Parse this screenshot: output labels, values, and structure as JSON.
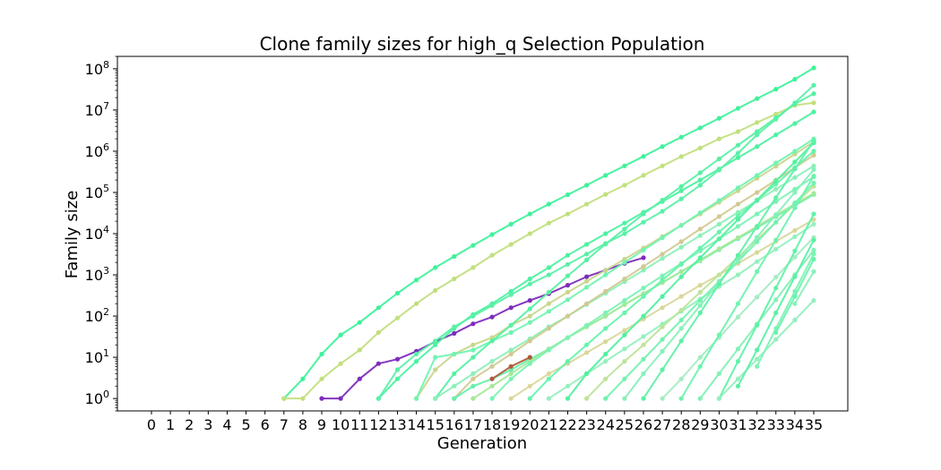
{
  "chart_data": {
    "type": "line",
    "title": "Clone family sizes for high_q Selection Population",
    "xlabel": "Generation",
    "ylabel": "Family size",
    "yscale": "log",
    "ylim": [
      0.5,
      200000000
    ],
    "xlim": [
      -1.8,
      36.8
    ],
    "x_ticks": [
      0,
      1,
      2,
      3,
      4,
      5,
      6,
      7,
      8,
      9,
      10,
      11,
      12,
      13,
      14,
      15,
      16,
      17,
      18,
      19,
      20,
      21,
      22,
      23,
      24,
      25,
      26,
      27,
      28,
      29,
      30,
      31,
      32,
      33,
      34,
      35
    ],
    "y_ticks": [
      {
        "value": 1,
        "base": "10",
        "exp": "0"
      },
      {
        "value": 10,
        "base": "10",
        "exp": "1"
      },
      {
        "value": 100,
        "base": "10",
        "exp": "2"
      },
      {
        "value": 1000,
        "base": "10",
        "exp": "3"
      },
      {
        "value": 10000,
        "base": "10",
        "exp": "4"
      },
      {
        "value": 100000,
        "base": "10",
        "exp": "5"
      },
      {
        "value": 1000000,
        "base": "10",
        "exp": "6"
      },
      {
        "value": 10000000,
        "base": "10",
        "exp": "7"
      },
      {
        "value": 100000000,
        "base": "10",
        "exp": "8"
      }
    ],
    "grid": false,
    "legend": "none",
    "markers": true,
    "series": [
      {
        "color": "#3ff29a",
        "x": [
          7,
          8,
          9,
          10,
          11,
          12,
          13,
          14,
          15,
          16,
          17,
          18,
          19,
          20,
          21,
          22,
          23,
          24,
          25,
          26,
          27,
          28,
          29,
          30,
          31,
          32,
          33,
          34,
          35
        ],
        "y": [
          1,
          3,
          12,
          35,
          70,
          160,
          360,
          750,
          1500,
          2800,
          5200,
          9500,
          17000,
          30000,
          52000,
          88000,
          150000,
          260000,
          440000,
          750000,
          1300000,
          2200000,
          3700000,
          6300000,
          11000000,
          19000000,
          32000000,
          56000000,
          105000000
        ]
      },
      {
        "color": "#c2df7e",
        "x": [
          7,
          8,
          9,
          10,
          11,
          12,
          13,
          14,
          15,
          16,
          17,
          18,
          19,
          20,
          21,
          22,
          23,
          24,
          25,
          26,
          27,
          28,
          29,
          30,
          31,
          32,
          33,
          34,
          35
        ],
        "y": [
          1,
          1,
          3,
          7,
          15,
          40,
          90,
          200,
          420,
          800,
          1500,
          3000,
          5500,
          10000,
          18000,
          30000,
          52000,
          90000,
          150000,
          260000,
          440000,
          740000,
          1200000,
          2000000,
          3000000,
          5000000,
          8000000,
          13000000,
          15000000
        ]
      },
      {
        "color": "#7d2cbc",
        "x": [
          9,
          10,
          11,
          12,
          13,
          14,
          15,
          16,
          17,
          18,
          19,
          20,
          21,
          22,
          23,
          24,
          25,
          26
        ],
        "y": [
          1,
          1,
          3,
          7,
          9,
          14,
          24,
          38,
          65,
          95,
          160,
          240,
          350,
          560,
          900,
          1300,
          1900,
          2600
        ]
      },
      {
        "color": "#4cf2a0",
        "x": [
          12,
          13,
          14,
          15,
          16,
          17,
          18,
          19,
          20,
          21,
          22,
          23,
          24,
          25,
          26,
          27,
          28,
          29,
          30,
          31,
          32,
          33,
          34,
          35
        ],
        "y": [
          1,
          3,
          8,
          20,
          50,
          110,
          200,
          400,
          800,
          1500,
          3000,
          5500,
          10000,
          18000,
          33000,
          60000,
          110000,
          200000,
          370000,
          700000,
          1300000,
          2500000,
          4700000,
          9000000
        ]
      },
      {
        "color": "#5af0a8",
        "x": [
          12,
          13,
          14,
          15,
          16,
          17,
          18,
          19,
          20,
          21,
          22,
          23,
          24,
          25,
          26,
          27,
          28,
          29,
          30,
          31,
          32,
          33,
          34,
          35
        ],
        "y": [
          1,
          5,
          12,
          25,
          55,
          100,
          180,
          330,
          600,
          1000,
          1800,
          3200,
          5800,
          10000,
          19000,
          35000,
          70000,
          150000,
          350000,
          900000,
          2500000,
          6000000,
          15000000,
          40000000
        ]
      },
      {
        "color": "#c9d68c",
        "x": [
          14,
          15,
          16,
          17,
          18,
          19,
          20,
          21,
          22,
          23,
          24,
          25,
          26,
          27,
          28,
          29,
          30,
          31,
          32,
          33,
          34,
          35
        ],
        "y": [
          1,
          5,
          12,
          20,
          30,
          60,
          100,
          200,
          380,
          700,
          1300,
          2400,
          4500,
          8500,
          16000,
          30000,
          58000,
          110000,
          220000,
          430000,
          850000,
          1700000
        ]
      },
      {
        "color": "#70f4b2",
        "x": [
          14,
          15,
          16,
          17,
          18,
          19,
          20,
          21,
          22,
          23,
          24,
          25,
          26,
          27,
          28,
          29,
          30,
          31,
          32,
          33,
          34,
          35
        ],
        "y": [
          1,
          10,
          12,
          15,
          25,
          40,
          70,
          130,
          250,
          500,
          1000,
          2000,
          4000,
          8000,
          16000,
          32000,
          64000,
          130000,
          260000,
          520000,
          1000000,
          2000000
        ]
      },
      {
        "color": "#57f0a3",
        "x": [
          15,
          16,
          17,
          18,
          19,
          20,
          21,
          22,
          23,
          24,
          25,
          26,
          27,
          28,
          29,
          30,
          31,
          32,
          33,
          34,
          35
        ],
        "y": [
          1,
          4,
          10,
          25,
          60,
          150,
          380,
          950,
          2300,
          5600,
          13000,
          30000,
          65000,
          140000,
          300000,
          650000,
          1400000,
          3000000,
          6500000,
          14000000,
          25000000
        ]
      },
      {
        "color": "#8cf0b8",
        "x": [
          15,
          16,
          17,
          18,
          19,
          20,
          21,
          22,
          23,
          24,
          25,
          26,
          27,
          28,
          29,
          30,
          31,
          32,
          33,
          34,
          35
        ],
        "y": [
          1,
          2,
          4,
          8,
          15,
          28,
          55,
          100,
          190,
          360,
          680,
          1300,
          2500,
          4700,
          9000,
          17000,
          33000,
          63000,
          120000,
          230000,
          440000
        ]
      },
      {
        "color": "#d2c992",
        "x": [
          16,
          17,
          18,
          19,
          20,
          21,
          22,
          23,
          24,
          25,
          26,
          27,
          28,
          29,
          30,
          31,
          32,
          33,
          34,
          35
        ],
        "y": [
          1,
          3,
          6,
          12,
          25,
          50,
          100,
          200,
          400,
          800,
          1600,
          3200,
          6400,
          13000,
          26000,
          52000,
          100000,
          200000,
          400000,
          800000
        ]
      },
      {
        "color": "#62f1a9",
        "x": [
          16,
          17,
          18,
          19,
          20,
          21,
          22,
          23,
          24,
          25,
          26,
          27,
          28,
          29,
          30,
          31,
          32,
          33,
          34,
          35
        ],
        "y": [
          1,
          2,
          3,
          5,
          9,
          16,
          30,
          55,
          100,
          190,
          350,
          650,
          1200,
          2200,
          4100,
          7600,
          14000,
          26000,
          48000,
          90000
        ]
      },
      {
        "color": "#a6e89a",
        "x": [
          17,
          18,
          19,
          20,
          21,
          22,
          23,
          24,
          25,
          26,
          27,
          28,
          29,
          30,
          31,
          32,
          33,
          34,
          35
        ],
        "y": [
          1,
          2,
          4,
          8,
          16,
          30,
          55,
          100,
          190,
          350,
          650,
          1200,
          2300,
          4300,
          8000,
          15000,
          28000,
          52000,
          95000
        ]
      },
      {
        "color": "#b05a3a",
        "x": [
          18,
          19,
          20
        ],
        "y": [
          3,
          6,
          10
        ]
      },
      {
        "color": "#7cf2b4",
        "x": [
          18,
          19,
          20,
          21,
          22,
          23,
          24,
          25,
          26,
          27,
          28,
          29,
          30,
          31,
          32,
          33,
          34,
          35
        ],
        "y": [
          1,
          3,
          7,
          15,
          30,
          60,
          120,
          240,
          480,
          950,
          1900,
          3800,
          7500,
          15000,
          30000,
          60000,
          120000,
          240000
        ]
      },
      {
        "color": "#d9d79a",
        "x": [
          19,
          20,
          21,
          22,
          23,
          24,
          25,
          26,
          27,
          28,
          29,
          30,
          31,
          32,
          33,
          34,
          35
        ],
        "y": [
          1,
          2,
          4,
          7,
          13,
          24,
          45,
          85,
          160,
          300,
          560,
          1000,
          1900,
          3500,
          6500,
          12000,
          22000
        ]
      },
      {
        "color": "#66f3ac",
        "x": [
          20,
          21,
          22,
          23,
          24,
          25,
          26,
          27,
          28,
          29,
          30,
          31,
          32,
          33,
          34,
          35
        ],
        "y": [
          1,
          3,
          8,
          20,
          50,
          120,
          300,
          750,
          1800,
          4500,
          11000,
          27000,
          66000,
          160000,
          400000,
          1000000
        ]
      },
      {
        "color": "#94f0be",
        "x": [
          21,
          22,
          23,
          24,
          25,
          26,
          27,
          28,
          29,
          30,
          31,
          32,
          33,
          34,
          35
        ],
        "y": [
          1,
          2,
          4,
          8,
          16,
          32,
          64,
          130,
          260,
          520,
          1000,
          2100,
          4200,
          8400,
          17000
        ]
      },
      {
        "color": "#52f0a0",
        "x": [
          22,
          23,
          24,
          25,
          26,
          27,
          28,
          29,
          30,
          31,
          32,
          33,
          34,
          35
        ],
        "y": [
          1,
          4,
          12,
          35,
          100,
          300,
          900,
          2600,
          7500,
          22000,
          65000,
          190000,
          550000,
          1600000
        ]
      },
      {
        "color": "#bfe39a",
        "x": [
          23,
          24,
          25,
          26,
          27,
          28,
          29,
          30,
          31,
          32,
          33,
          34,
          35
        ],
        "y": [
          1,
          3,
          8,
          20,
          55,
          140,
          380,
          1000,
          2700,
          7200,
          19000,
          52000,
          140000
        ]
      },
      {
        "color": "#74f2b0",
        "x": [
          24,
          25,
          26,
          27,
          28,
          29,
          30,
          31,
          32,
          33,
          34,
          35
        ],
        "y": [
          1,
          3,
          9,
          27,
          80,
          240,
          700,
          2100,
          6300,
          19000,
          56000,
          170000
        ]
      },
      {
        "color": "#88f0ba",
        "x": [
          25,
          26,
          27,
          28,
          29,
          30,
          31,
          32,
          33,
          34,
          35
        ],
        "y": [
          1,
          4,
          14,
          50,
          180,
          650,
          2300,
          8200,
          29000,
          100000,
          360000
        ]
      },
      {
        "color": "#5ef1a6",
        "x": [
          26,
          27,
          28,
          29,
          30,
          31,
          32,
          33,
          34,
          35
        ],
        "y": [
          1,
          5,
          25,
          120,
          600,
          3000,
          15000,
          75000,
          370000,
          1800000
        ]
      },
      {
        "color": "#a4ecc2",
        "x": [
          27,
          28,
          29,
          30,
          31,
          32,
          33,
          34,
          35
        ],
        "y": [
          1,
          3,
          10,
          30,
          95,
          290,
          880,
          2700,
          8100
        ]
      },
      {
        "color": "#6ef3ae",
        "x": [
          28,
          29,
          30,
          31,
          32,
          33,
          34,
          35
        ],
        "y": [
          1,
          6,
          35,
          200,
          1200,
          7000,
          42000,
          250000
        ]
      },
      {
        "color": "#82f1b6",
        "x": [
          29,
          30,
          31,
          32,
          33,
          34,
          35
        ],
        "y": [
          1,
          4,
          16,
          64,
          250,
          1000,
          4000
        ]
      },
      {
        "color": "#60f2a8",
        "x": [
          30,
          31,
          32,
          33,
          34,
          35
        ],
        "y": [
          1,
          8,
          60,
          480,
          3800,
          30000
        ]
      },
      {
        "color": "#96efc0",
        "x": [
          30,
          31,
          32,
          33,
          34,
          35
        ],
        "y": [
          1,
          3,
          9,
          27,
          80,
          240
        ]
      },
      {
        "color": "#5cf0a4",
        "x": [
          31,
          32,
          33,
          34,
          35
        ],
        "y": [
          2,
          15,
          120,
          900,
          7000
        ]
      },
      {
        "color": "#7ef2b4",
        "x": [
          32,
          33,
          34,
          35
        ],
        "y": [
          6,
          50,
          400,
          3200
        ]
      },
      {
        "color": "#68f3ac",
        "x": [
          33,
          34,
          35
        ],
        "y": [
          40,
          300,
          2400
        ]
      },
      {
        "color": "#8af0bc",
        "x": [
          34,
          35
        ],
        "y": [
          200,
          1200
        ]
      }
    ]
  }
}
